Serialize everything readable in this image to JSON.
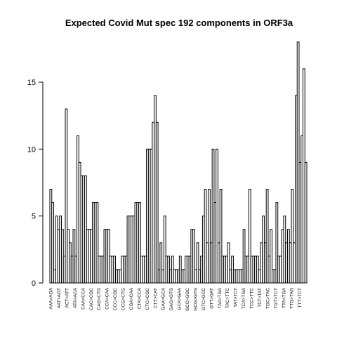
{
  "chart_data": {
    "type": "bar",
    "title": "Expected Covid Mut spec 192 components in ORF3a",
    "xlabel": "",
    "ylabel": "",
    "ylim": [
      0,
      18
    ],
    "yticks": [
      0,
      5,
      10,
      15
    ],
    "bar_fill": "#ffffff",
    "bar_stroke": "#000000",
    "tick_labels": [
      "AAA>AGA",
      "AAT>AGT",
      "ACT>ATT",
      "ATA>ACA",
      "CAA>CCA",
      "CAC>CGC",
      "CAG>CTG",
      "CCA>CAA",
      "CCC>CGC",
      "CCG>CTG",
      "CGA>CAA",
      "CTA>CCA",
      "CTC>CGC",
      "CTT>CAT",
      "GAA>GCA",
      "GAG>GTG",
      "GCA>GAA",
      "GCC>GGC",
      "GCG>GTG",
      "GTC>GCC",
      "GTT>GAT",
      "TAA>TGA",
      "TAC>TTC",
      "TAT>TCT",
      "TCA>TGA",
      "TCC>TTC",
      "TCT>TAT",
      "TGC>TAC",
      "TGT>TCT",
      "TTA>TGA",
      "TTG>TAG",
      "TTT>TCT"
    ],
    "values": [
      7,
      6,
      1,
      5,
      4,
      5,
      4,
      2,
      13,
      4,
      3,
      2,
      4,
      2,
      11,
      9,
      8,
      8,
      8,
      4,
      4,
      4,
      6,
      6,
      6,
      2,
      2,
      2,
      4,
      4,
      4,
      2,
      2,
      2,
      1,
      1,
      1,
      2,
      2,
      2,
      5,
      5,
      5,
      5,
      6,
      6,
      6,
      2,
      2,
      2,
      10,
      10,
      10,
      12,
      14,
      12,
      1,
      3,
      1,
      5,
      2,
      2,
      1,
      2,
      1,
      1,
      1,
      2,
      1,
      1,
      2,
      2,
      2,
      4,
      4,
      1,
      3,
      1,
      2,
      5,
      7,
      3,
      7,
      3,
      10,
      6,
      10,
      3,
      7,
      2,
      2,
      2,
      3,
      1,
      2,
      1,
      1,
      1,
      1,
      1,
      4,
      2,
      2,
      7,
      2,
      2,
      2,
      2,
      1,
      3,
      5,
      3,
      7,
      2,
      4,
      1,
      1,
      6,
      2,
      2,
      4,
      5,
      3,
      4,
      3,
      7,
      3,
      14,
      18,
      9,
      11,
      16,
      9
    ]
  }
}
